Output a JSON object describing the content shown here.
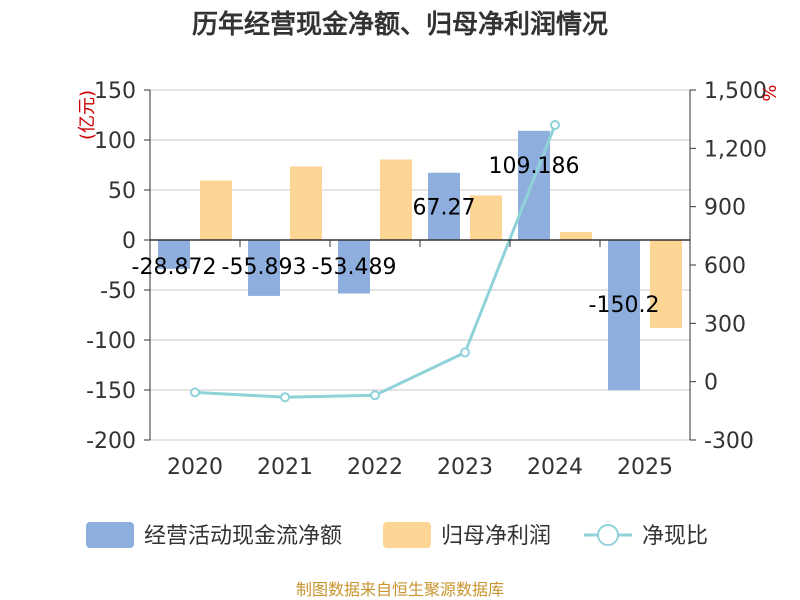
{
  "chart_data": {
    "type": "bar+line",
    "title": "历年经营现金净额、归母净利润情况",
    "categories": [
      "2020",
      "2021",
      "2022",
      "2023",
      "2024",
      "2025"
    ],
    "series": [
      {
        "name": "经营活动现金流净额",
        "type": "bar",
        "axis": "left",
        "color": "#8eaede",
        "values": [
          -28.872,
          -55.893,
          -53.489,
          67.27,
          109.186,
          -150.2
        ],
        "labels": [
          "-28.872",
          "-55.893",
          "-53.489",
          "67.27",
          "109.186",
          "-150.2"
        ]
      },
      {
        "name": "归母净利润",
        "type": "bar",
        "axis": "left",
        "color": "#fdd594",
        "values": [
          59.5,
          73.5,
          80.5,
          44.5,
          8.0,
          -88.0
        ]
      },
      {
        "name": "净现比",
        "type": "line",
        "axis": "right",
        "color": "#8fd3d9",
        "values": [
          -55,
          -80,
          -70,
          150,
          1320,
          null
        ]
      }
    ],
    "y_left": {
      "label": "(亿元)",
      "min": -200,
      "max": 150,
      "ticks": [
        150,
        100,
        50,
        0,
        -50,
        -100,
        -150,
        -200
      ],
      "tick_labels": [
        "150",
        "100",
        "50",
        "0",
        "-50",
        "-100",
        "-150",
        "-200"
      ]
    },
    "y_right": {
      "label": "%",
      "min": -300,
      "max": 1500,
      "ticks": [
        1500,
        1200,
        900,
        600,
        300,
        0,
        -300
      ],
      "tick_labels": [
        "1,500",
        "1,200",
        "900",
        "600",
        "300",
        "0",
        "-300"
      ]
    },
    "legend": {
      "position": "bottom",
      "items": [
        "经营活动现金流净额",
        "归母净利润",
        "净现比"
      ]
    },
    "source": "制图数据来自恒生聚源数据库"
  }
}
